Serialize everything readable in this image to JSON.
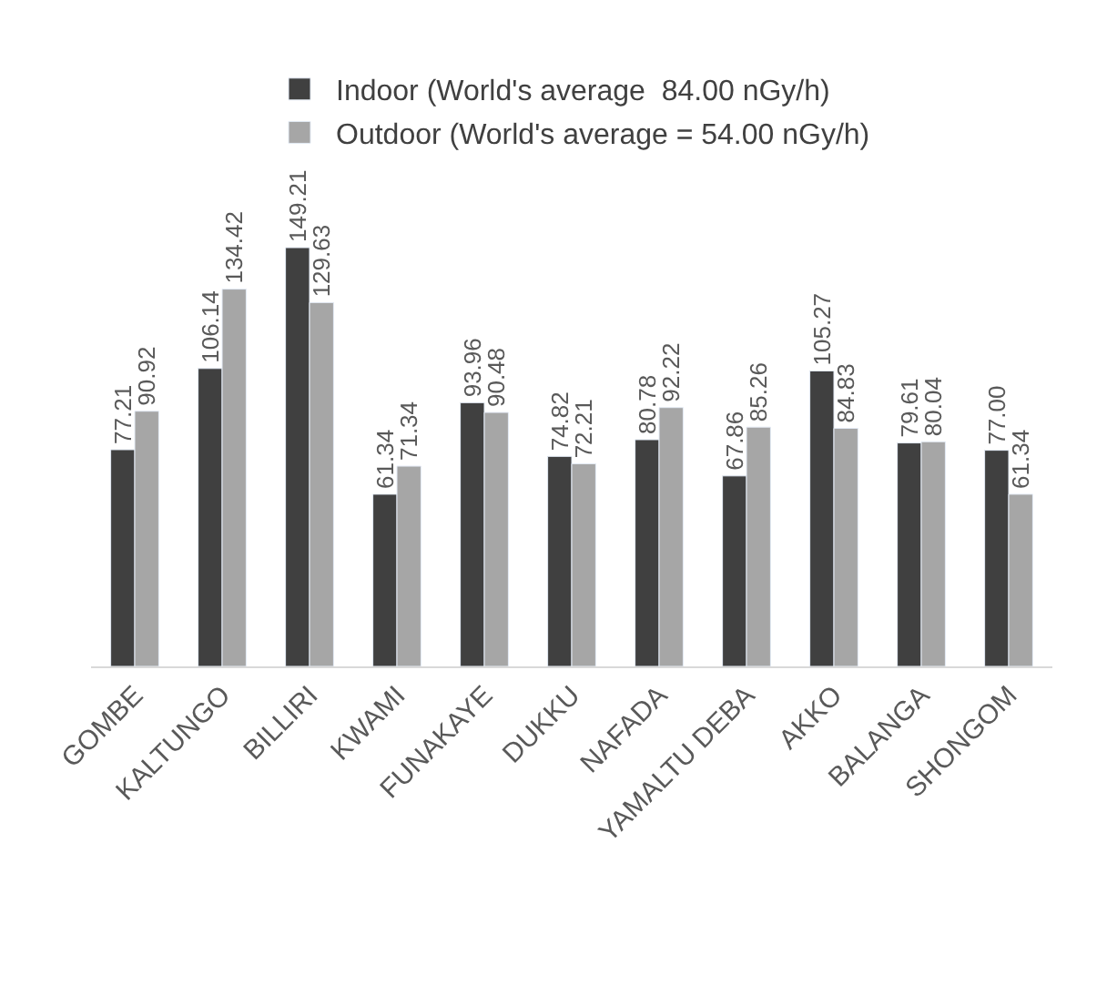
{
  "chart_data": {
    "type": "bar",
    "categories": [
      "GOMBE",
      "KALTUNGO",
      "BILLIRI",
      "KWAMI",
      "FUNAKAYE",
      "DUKKU",
      "NAFADA",
      "YAMALTU DEBA",
      "AKKO",
      "BALANGA",
      "SHONGOM"
    ],
    "series": [
      {
        "name": "Indoor (World's average  84.00 nGy/h)",
        "color": "#404040",
        "values": [
          77.21,
          106.14,
          149.21,
          61.34,
          93.96,
          74.82,
          80.78,
          67.86,
          105.27,
          79.61,
          77.0
        ],
        "value_labels": [
          "77.21",
          "106.14",
          "149.21",
          "61.34",
          "93.96",
          "74.82",
          "80.78",
          "67.86",
          "105.27",
          "79.61",
          "77.00"
        ]
      },
      {
        "name": "Outdoor (World's average = 54.00 nGy/h)",
        "color": "#a6a6a6",
        "values": [
          90.92,
          134.42,
          129.63,
          71.34,
          90.48,
          72.21,
          92.22,
          85.26,
          84.83,
          80.04,
          61.34
        ],
        "value_labels": [
          "90.92",
          "134.42",
          "129.63",
          "71.34",
          "90.48",
          "72.21",
          "92.22",
          "85.26",
          "84.83",
          "80.04",
          "61.34"
        ]
      }
    ],
    "legend": "top"
  }
}
